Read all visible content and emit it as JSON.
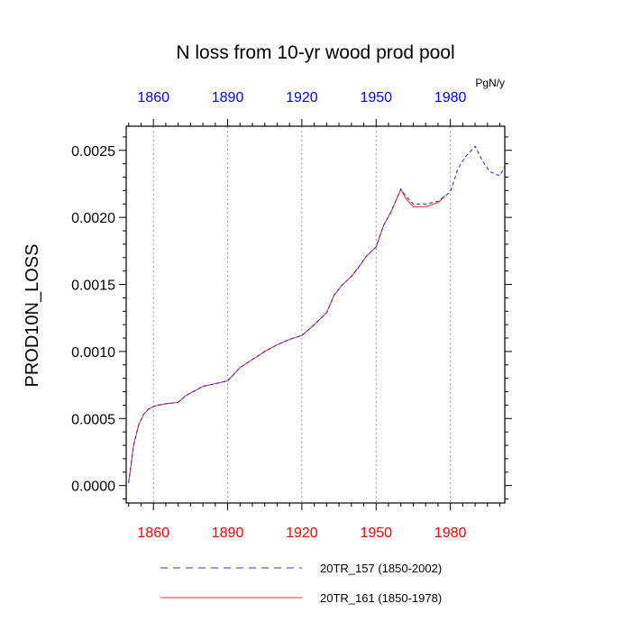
{
  "chart_data": {
    "type": "line",
    "title": "N loss from 10-yr wood prod pool",
    "units": "PgN/y",
    "ylabel": "PROD10N_LOSS",
    "xlabel": "",
    "xlim": [
      1849,
      2002
    ],
    "ylim": [
      -0.00013,
      0.00268
    ],
    "x_ticks": [
      1860,
      1890,
      1920,
      1950,
      1980
    ],
    "x_tick_labels": [
      "1860",
      "1890",
      "1920",
      "1950",
      "1980"
    ],
    "y_ticks": [
      0.0,
      0.0005,
      0.001,
      0.0015,
      0.002,
      0.0025
    ],
    "y_tick_labels": [
      "0.0000",
      "0.0005",
      "0.0010",
      "0.0015",
      "0.0020",
      "0.0025"
    ],
    "grid": "vertical dotted at major x ticks",
    "colors": {
      "top_axis_labels": "#0000ff",
      "bottom_axis_labels": "#ff0000",
      "series_157": "#3333cc",
      "series_161": "#ff3333"
    },
    "series": [
      {
        "name": "20TR_157 (1850-2002)",
        "style": "dashed",
        "color": "#3333cc",
        "x": [
          1850,
          1852,
          1854,
          1856,
          1858,
          1860,
          1862,
          1865,
          1870,
          1873,
          1876,
          1880,
          1885,
          1890,
          1892,
          1895,
          1900,
          1905,
          1910,
          1915,
          1920,
          1925,
          1930,
          1933,
          1936,
          1940,
          1943,
          1946,
          1950,
          1953,
          1956,
          1960,
          1962,
          1965,
          1970,
          1975,
          1980,
          1983,
          1986,
          1990,
          1993,
          1996,
          2000,
          2002
        ],
        "y": [
          2e-05,
          0.0003,
          0.00045,
          0.00053,
          0.00057,
          0.00059,
          0.0006,
          0.00061,
          0.00062,
          0.00067,
          0.0007,
          0.00074,
          0.00076,
          0.00078,
          0.00082,
          0.00088,
          0.00094,
          0.001,
          0.00105,
          0.00109,
          0.00112,
          0.0012,
          0.00129,
          0.00142,
          0.00149,
          0.00156,
          0.00163,
          0.00171,
          0.00178,
          0.00194,
          0.00204,
          0.00221,
          0.00216,
          0.0021,
          0.0021,
          0.00212,
          0.00219,
          0.00236,
          0.00245,
          0.00253,
          0.00242,
          0.00234,
          0.00231,
          0.00238
        ]
      },
      {
        "name": "20TR_161 (1850-1978)",
        "style": "solid",
        "color": "#ff3333",
        "x": [
          1850,
          1852,
          1854,
          1856,
          1858,
          1860,
          1862,
          1865,
          1870,
          1873,
          1876,
          1880,
          1885,
          1890,
          1892,
          1895,
          1900,
          1905,
          1910,
          1915,
          1920,
          1925,
          1930,
          1933,
          1936,
          1940,
          1943,
          1946,
          1950,
          1953,
          1956,
          1960,
          1962,
          1965,
          1970,
          1975,
          1978
        ],
        "y": [
          2e-05,
          0.0003,
          0.00045,
          0.00053,
          0.00057,
          0.00059,
          0.0006,
          0.00061,
          0.00062,
          0.00067,
          0.0007,
          0.00074,
          0.00076,
          0.00078,
          0.00082,
          0.00088,
          0.00094,
          0.001,
          0.00105,
          0.00109,
          0.00112,
          0.0012,
          0.00129,
          0.00142,
          0.00149,
          0.00156,
          0.00163,
          0.00171,
          0.00178,
          0.00194,
          0.00204,
          0.00221,
          0.00214,
          0.00208,
          0.00208,
          0.00211,
          0.00216
        ]
      }
    ]
  }
}
